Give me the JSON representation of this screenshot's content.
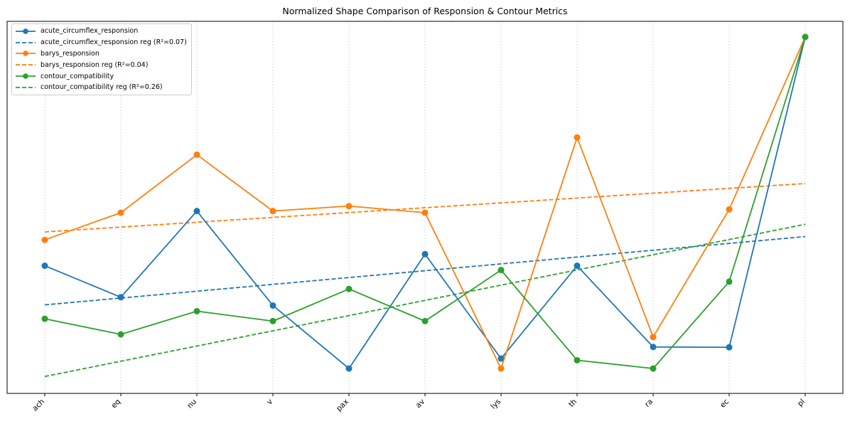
{
  "chart_data": {
    "type": "line",
    "title": "Normalized Shape Comparison of Responsion & Contour Metrics",
    "xlabel": "",
    "ylabel": "",
    "categories": [
      "ach",
      "eq",
      "nu",
      "v",
      "pax",
      "av",
      "lys",
      "th",
      "ra",
      "ec",
      "pl"
    ],
    "ylim": [
      -0.06,
      1.0
    ],
    "grid": "vertical-dotted",
    "legend_position": "top-left",
    "series": [
      {
        "name": "acute_circumflex_responsion",
        "color": "#1f77b4",
        "values": [
          0.31,
          0.215,
          0.475,
          0.19,
          0.0,
          0.345,
          0.03,
          0.31,
          0.065,
          0.064,
          1.0
        ],
        "regression": {
          "label": "acute_circumflex_responsion reg (R²=0.07)",
          "start": 0.192,
          "end": 0.398
        }
      },
      {
        "name": "barys_responsion",
        "color": "#ff7f0e",
        "values": [
          0.388,
          0.47,
          0.645,
          0.475,
          0.49,
          0.47,
          0.0,
          0.697,
          0.095,
          0.48,
          1.0
        ],
        "regression": {
          "label": "barys_responsion reg (R²=0.04)",
          "start": 0.412,
          "end": 0.558
        }
      },
      {
        "name": "contour_compatibility",
        "color": "#2ca02c",
        "values": [
          0.15,
          0.103,
          0.173,
          0.143,
          0.24,
          0.143,
          0.297,
          0.025,
          0.0,
          0.262,
          1.0
        ],
        "regression": {
          "label": "contour_compatibility reg (R²=0.26)",
          "start": -0.024,
          "end": 0.435
        }
      }
    ]
  }
}
